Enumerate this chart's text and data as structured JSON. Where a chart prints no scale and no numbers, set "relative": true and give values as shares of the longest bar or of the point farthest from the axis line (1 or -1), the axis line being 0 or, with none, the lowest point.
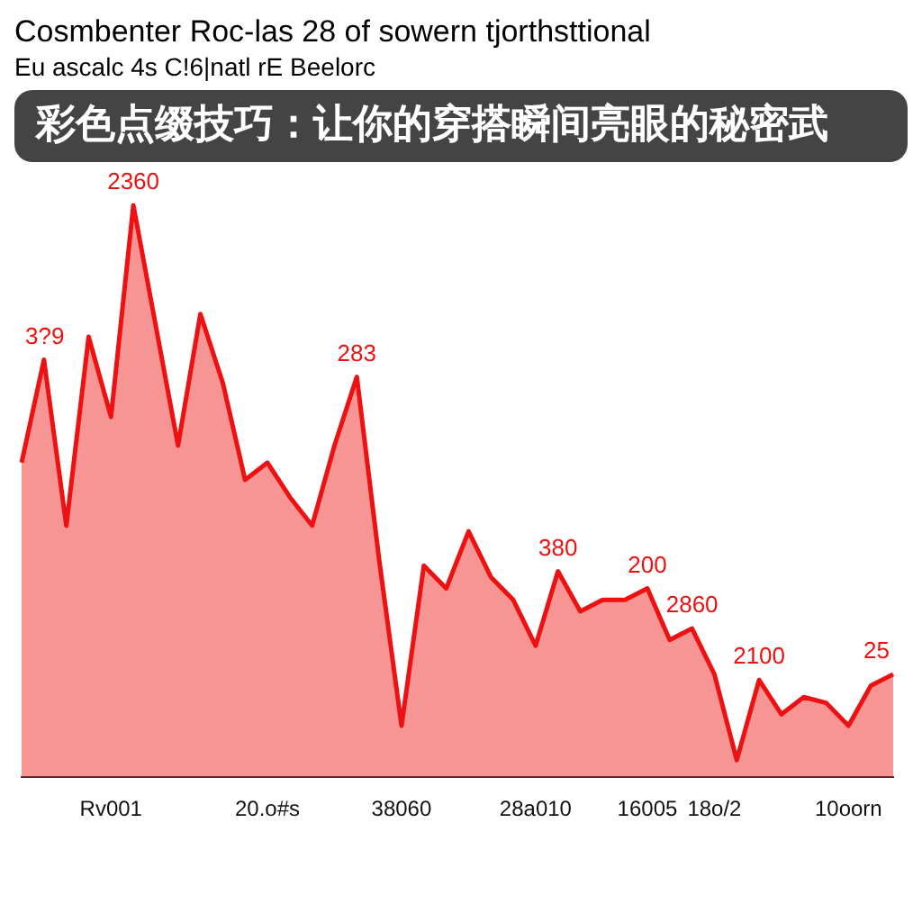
{
  "chart_data": {
    "type": "area",
    "title": "Cosmbenter Roc-las 28 of sowern tjorthsttional",
    "subtitle": "Eu ascalc 4s C!6|natl rE Beelorc",
    "annotations": [
      "彩色点缀技巧：让你的穿搭瞬间亮眼的秘密武",
      {
        "text": "3?9",
        "y": 0.73
      },
      {
        "text": "2360",
        "y": 1
      },
      {
        "text": "283",
        "y": 0.7
      },
      {
        "text": "380",
        "y": 0.36
      },
      {
        "text": "200",
        "y": 0.33
      },
      {
        "text": "2860",
        "y": 0.26
      },
      {
        "text": "2100",
        "y": 0.17
      },
      {
        "text": "25",
        "y": 0.18
      }
    ],
    "relative": true,
    "categories": [
      null,
      null,
      null,
      null,
      "Rv001",
      null,
      null,
      null,
      null,
      null,
      null,
      "20.o#s",
      null,
      null,
      null,
      null,
      null,
      "38060",
      null,
      null,
      null,
      null,
      null,
      "28a010",
      null,
      null,
      null,
      null,
      "16005",
      null,
      null,
      "18o/2",
      null,
      null,
      null,
      null,
      null,
      "10oorn",
      null,
      null
    ],
    "series": [
      {
        "color": "#ee1111",
        "values": [
          0.55,
          0.73,
          0.44,
          0.77,
          0.63,
          1,
          0.79,
          0.58,
          0.81,
          0.69,
          0.52,
          0.55,
          0.49,
          0.44,
          0.58,
          0.7,
          0.38,
          0.09,
          0.37,
          0.33,
          0.43,
          0.35,
          0.31,
          0.23,
          0.36,
          0.29,
          0.31,
          0.31,
          0.33,
          0.24,
          0.26,
          0.18,
          0.03,
          0.17,
          0.11,
          0.14,
          0.13,
          0.09,
          0.16,
          0.18
        ]
      }
    ]
  }
}
